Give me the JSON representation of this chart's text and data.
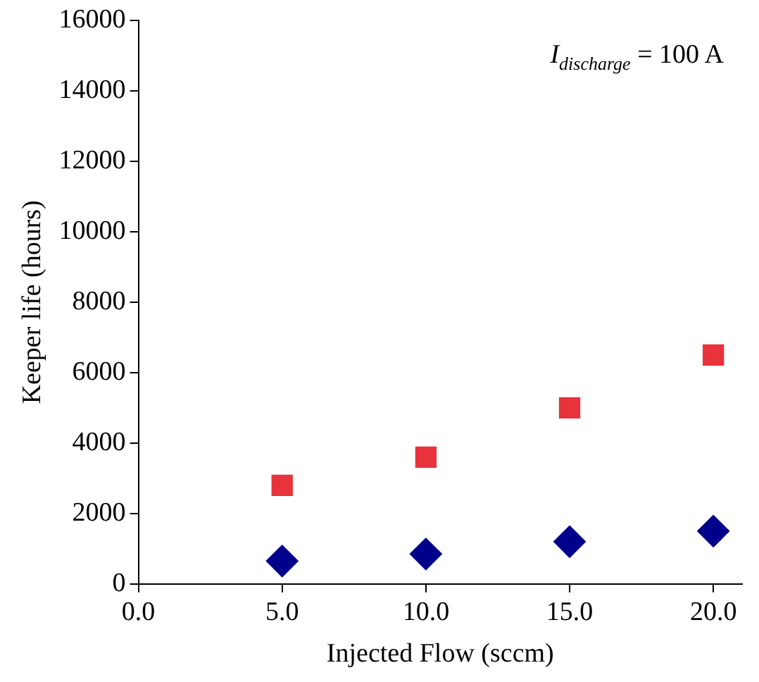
{
  "chart_data": {
    "type": "scatter",
    "xlabel": "Injected Flow (sccm)",
    "ylabel": "Keeper life (hours)",
    "annotations": [
      "I$_{discharge}$ = 100 A"
    ],
    "xlim": [
      0,
      21
    ],
    "xticks": [
      {
        "value": 0,
        "label": "0.0"
      },
      {
        "value": 5,
        "label": "5.0"
      },
      {
        "value": 10,
        "label": "10.0"
      },
      {
        "value": 15,
        "label": "15.0"
      },
      {
        "value": 20,
        "label": "20.0"
      }
    ],
    "ylim": [
      0,
      16000
    ],
    "yticks": [
      0,
      2000,
      4000,
      6000,
      8000,
      10000,
      12000,
      14000,
      16000
    ],
    "grid": false,
    "legend": false,
    "series": [
      {
        "color": "#e8323c",
        "marker": "square",
        "x": [
          5,
          10,
          15,
          20
        ],
        "values": [
          2800,
          3600,
          5000,
          6500
        ]
      },
      {
        "color": "#00008b",
        "marker": "diamond",
        "x": [
          5,
          10,
          15,
          20
        ],
        "values": [
          650,
          850,
          1200,
          1500
        ]
      }
    ]
  }
}
